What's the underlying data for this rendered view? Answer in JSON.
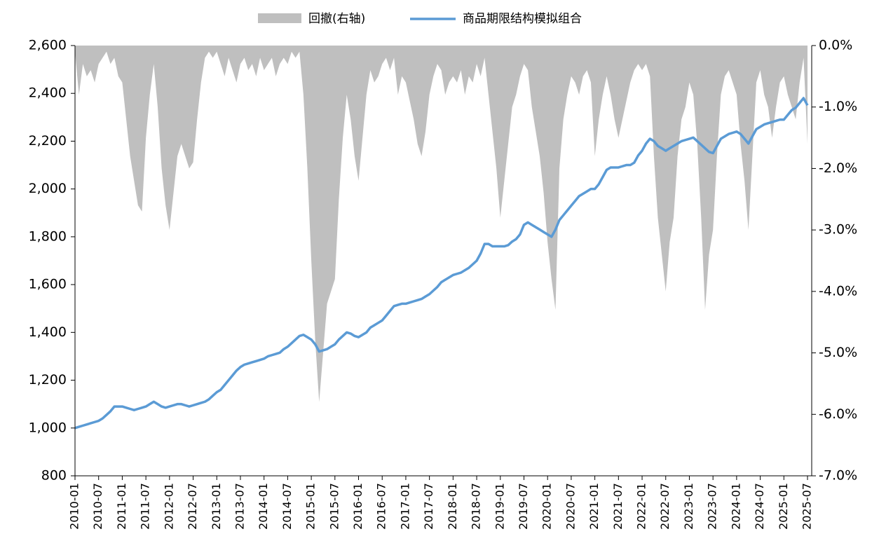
{
  "chart_data": {
    "type": "line",
    "x": [
      "2010-01",
      "2010-02",
      "2010-03",
      "2010-04",
      "2010-05",
      "2010-06",
      "2010-07",
      "2010-08",
      "2010-09",
      "2010-10",
      "2010-11",
      "2010-12",
      "2011-01",
      "2011-02",
      "2011-03",
      "2011-04",
      "2011-05",
      "2011-06",
      "2011-07",
      "2011-08",
      "2011-09",
      "2011-10",
      "2011-11",
      "2011-12",
      "2012-01",
      "2012-02",
      "2012-03",
      "2012-04",
      "2012-05",
      "2012-06",
      "2012-07",
      "2012-08",
      "2012-09",
      "2012-10",
      "2012-11",
      "2012-12",
      "2013-01",
      "2013-02",
      "2013-03",
      "2013-04",
      "2013-05",
      "2013-06",
      "2013-07",
      "2013-08",
      "2013-09",
      "2013-10",
      "2013-11",
      "2013-12",
      "2014-01",
      "2014-02",
      "2014-03",
      "2014-04",
      "2014-05",
      "2014-06",
      "2014-07",
      "2014-08",
      "2014-09",
      "2014-10",
      "2014-11",
      "2014-12",
      "2015-01",
      "2015-02",
      "2015-03",
      "2015-04",
      "2015-05",
      "2015-06",
      "2015-07",
      "2015-08",
      "2015-09",
      "2015-10",
      "2015-11",
      "2015-12",
      "2016-01",
      "2016-02",
      "2016-03",
      "2016-04",
      "2016-05",
      "2016-06",
      "2016-07",
      "2016-08",
      "2016-09",
      "2016-10",
      "2016-11",
      "2016-12",
      "2017-01",
      "2017-02",
      "2017-03",
      "2017-04",
      "2017-05",
      "2017-06",
      "2017-07",
      "2017-08",
      "2017-09",
      "2017-10",
      "2017-11",
      "2017-12",
      "2018-01",
      "2018-02",
      "2018-03",
      "2018-04",
      "2018-05",
      "2018-06",
      "2018-07",
      "2018-08",
      "2018-09",
      "2018-10",
      "2018-11",
      "2018-12",
      "2019-01",
      "2019-02",
      "2019-03",
      "2019-04",
      "2019-05",
      "2019-06",
      "2019-07",
      "2019-08",
      "2019-09",
      "2019-10",
      "2019-11",
      "2019-12",
      "2020-01",
      "2020-02",
      "2020-03",
      "2020-04",
      "2020-05",
      "2020-06",
      "2020-07",
      "2020-08",
      "2020-09",
      "2020-10",
      "2020-11",
      "2020-12",
      "2021-01",
      "2021-02",
      "2021-03",
      "2021-04",
      "2021-05",
      "2021-06",
      "2021-07",
      "2021-08",
      "2021-09",
      "2021-10",
      "2021-11",
      "2021-12",
      "2022-01",
      "2022-02",
      "2022-03",
      "2022-04",
      "2022-05",
      "2022-06",
      "2022-07",
      "2022-08",
      "2022-09",
      "2022-10",
      "2022-11",
      "2022-12",
      "2023-01",
      "2023-02",
      "2023-03",
      "2023-04",
      "2023-05",
      "2023-06",
      "2023-07",
      "2023-08",
      "2023-09",
      "2023-10",
      "2023-11",
      "2023-12",
      "2024-01",
      "2024-02",
      "2024-03",
      "2024-04",
      "2024-05",
      "2024-06",
      "2024-07",
      "2024-08",
      "2024-09",
      "2024-10",
      "2024-11",
      "2024-12",
      "2025-01",
      "2025-02",
      "2025-03",
      "2025-04",
      "2025-05",
      "2025-06",
      "2025-07"
    ],
    "xticks": [
      "2010-01",
      "2010-07",
      "2011-01",
      "2011-07",
      "2012-01",
      "2012-07",
      "2013-01",
      "2013-07",
      "2014-01",
      "2014-07",
      "2015-01",
      "2015-07",
      "2016-01",
      "2016-07",
      "2017-01",
      "2017-07",
      "2018-01",
      "2018-07",
      "2019-01",
      "2019-07",
      "2020-01",
      "2020-07",
      "2021-01",
      "2021-07",
      "2022-01",
      "2022-07",
      "2023-01",
      "2023-07",
      "2024-01",
      "2024-07",
      "2025-01",
      "2025-07"
    ],
    "series": [
      {
        "name": "回撤(右轴)",
        "type": "area",
        "color": "#bfbfbf",
        "axis": "y2",
        "values": [
          -0.1,
          -0.8,
          -0.3,
          -0.5,
          -0.4,
          -0.6,
          -0.3,
          -0.2,
          -0.1,
          -0.3,
          -0.2,
          -0.5,
          -0.6,
          -1.2,
          -1.8,
          -2.2,
          -2.6,
          -2.7,
          -1.5,
          -0.8,
          -0.3,
          -1.0,
          -2.0,
          -2.6,
          -3.0,
          -2.4,
          -1.8,
          -1.6,
          -1.8,
          -2.0,
          -1.9,
          -1.2,
          -0.6,
          -0.2,
          -0.1,
          -0.2,
          -0.1,
          -0.3,
          -0.5,
          -0.2,
          -0.4,
          -0.6,
          -0.3,
          -0.2,
          -0.4,
          -0.3,
          -0.5,
          -0.2,
          -0.4,
          -0.3,
          -0.2,
          -0.5,
          -0.3,
          -0.2,
          -0.3,
          -0.1,
          -0.2,
          -0.1,
          -0.8,
          -2.0,
          -3.5,
          -4.8,
          -5.8,
          -5.0,
          -4.2,
          -4.0,
          -3.8,
          -2.5,
          -1.5,
          -0.8,
          -1.2,
          -1.8,
          -2.2,
          -1.5,
          -0.8,
          -0.4,
          -0.6,
          -0.5,
          -0.3,
          -0.2,
          -0.4,
          -0.2,
          -0.8,
          -0.5,
          -0.6,
          -0.9,
          -1.2,
          -1.6,
          -1.8,
          -1.4,
          -0.8,
          -0.5,
          -0.3,
          -0.4,
          -0.8,
          -0.6,
          -0.5,
          -0.6,
          -0.4,
          -0.8,
          -0.5,
          -0.6,
          -0.3,
          -0.5,
          -0.2,
          -0.8,
          -1.4,
          -2.0,
          -2.8,
          -2.2,
          -1.6,
          -1.0,
          -0.8,
          -0.5,
          -0.3,
          -0.4,
          -1.0,
          -1.4,
          -1.8,
          -2.4,
          -3.2,
          -3.8,
          -4.3,
          -2.0,
          -1.2,
          -0.8,
          -0.5,
          -0.6,
          -0.8,
          -0.5,
          -0.4,
          -0.6,
          -1.8,
          -1.2,
          -0.8,
          -0.5,
          -0.8,
          -1.2,
          -1.5,
          -1.2,
          -0.9,
          -0.6,
          -0.4,
          -0.3,
          -0.4,
          -0.3,
          -0.5,
          -1.8,
          -2.8,
          -3.4,
          -4.0,
          -3.2,
          -2.8,
          -1.8,
          -1.2,
          -1.0,
          -0.6,
          -0.8,
          -1.6,
          -2.8,
          -4.3,
          -3.4,
          -3.0,
          -1.8,
          -0.8,
          -0.5,
          -0.4,
          -0.6,
          -0.8,
          -1.6,
          -2.2,
          -3.0,
          -1.8,
          -0.6,
          -0.4,
          -0.8,
          -1.0,
          -1.5,
          -1.0,
          -0.6,
          -0.5,
          -0.8,
          -1.0,
          -1.2,
          -0.6,
          -0.2,
          -1.6
        ]
      },
      {
        "name": "商品期限结构模拟组合",
        "color": "#5b9bd5",
        "values": [
          1000,
          1005,
          1010,
          1015,
          1020,
          1025,
          1030,
          1040,
          1055,
          1070,
          1090,
          1090,
          1090,
          1085,
          1080,
          1075,
          1080,
          1085,
          1090,
          1100,
          1110,
          1100,
          1090,
          1085,
          1090,
          1095,
          1100,
          1100,
          1095,
          1090,
          1095,
          1100,
          1105,
          1110,
          1120,
          1135,
          1150,
          1160,
          1180,
          1200,
          1220,
          1240,
          1255,
          1265,
          1270,
          1275,
          1280,
          1285,
          1290,
          1300,
          1305,
          1310,
          1315,
          1330,
          1340,
          1355,
          1370,
          1385,
          1390,
          1380,
          1370,
          1350,
          1320,
          1325,
          1330,
          1340,
          1350,
          1370,
          1385,
          1400,
          1395,
          1385,
          1380,
          1390,
          1400,
          1420,
          1430,
          1440,
          1450,
          1470,
          1490,
          1510,
          1515,
          1520,
          1520,
          1525,
          1530,
          1535,
          1540,
          1550,
          1560,
          1575,
          1590,
          1610,
          1620,
          1630,
          1640,
          1645,
          1650,
          1660,
          1670,
          1685,
          1700,
          1730,
          1770,
          1770,
          1760,
          1760,
          1760,
          1760,
          1765,
          1780,
          1790,
          1810,
          1850,
          1860,
          1850,
          1840,
          1830,
          1820,
          1810,
          1800,
          1830,
          1870,
          1890,
          1910,
          1930,
          1950,
          1970,
          1980,
          1990,
          2000,
          2000,
          2020,
          2050,
          2080,
          2090,
          2090,
          2090,
          2095,
          2100,
          2100,
          2110,
          2140,
          2160,
          2190,
          2210,
          2200,
          2180,
          2170,
          2160,
          2170,
          2180,
          2190,
          2200,
          2205,
          2210,
          2215,
          2200,
          2185,
          2170,
          2155,
          2150,
          2180,
          2210,
          2220,
          2230,
          2235,
          2240,
          2230,
          2210,
          2190,
          2220,
          2250,
          2260,
          2270,
          2275,
          2280,
          2285,
          2290,
          2290,
          2310,
          2330,
          2340,
          2360,
          2380,
          2350
        ]
      }
    ],
    "ylim": [
      800,
      2600
    ],
    "yticks": [
      800,
      {
        "value": 1000,
        "label": "1,000"
      },
      {
        "value": 1200,
        "label": "1,200"
      },
      {
        "value": 1400,
        "label": "1,400"
      },
      {
        "value": 1600,
        "label": "1,600"
      },
      {
        "value": 1800,
        "label": "1,800"
      },
      {
        "value": 2000,
        "label": "2,000"
      },
      {
        "value": 2200,
        "label": "2,200"
      },
      {
        "value": 2400,
        "label": "2,400"
      },
      {
        "value": 2600,
        "label": "2,600"
      }
    ],
    "y2lim": [
      -7,
      0
    ],
    "y2ticks": [
      {
        "value": -7,
        "label": "-7.0%"
      },
      {
        "value": -6,
        "label": "-6.0%"
      },
      {
        "value": -5,
        "label": "-5.0%"
      },
      {
        "value": -4,
        "label": "-4.0%"
      },
      {
        "value": -3,
        "label": "-3.0%"
      },
      {
        "value": -2,
        "label": "-2.0%"
      },
      {
        "value": -1,
        "label": "-1.0%"
      },
      {
        "value": 0,
        "label": "0.0%"
      }
    ],
    "legend": "top"
  }
}
